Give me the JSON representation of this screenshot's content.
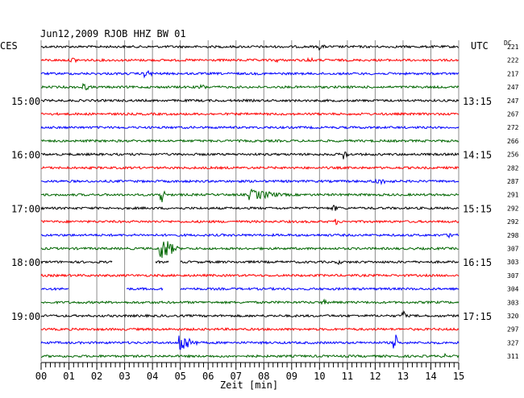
{
  "chart_data": {
    "type": "line",
    "title": "Jun12,2009  RJOB HHZ BW 01",
    "left_label": "CES",
    "right_label": "UTC",
    "dc_header": "DC",
    "xlabel": "Zeit [min]",
    "x_ticks": [
      "00",
      "01",
      "02",
      "03",
      "04",
      "05",
      "06",
      "07",
      "08",
      "09",
      "10",
      "11",
      "12",
      "13",
      "14",
      "15"
    ],
    "xlim": [
      0,
      15
    ],
    "left_time_labels": [
      {
        "trace": 4,
        "text": "15:00"
      },
      {
        "trace": 8,
        "text": "16:00"
      },
      {
        "trace": 12,
        "text": "17:00"
      },
      {
        "trace": 16,
        "text": "18:00"
      },
      {
        "trace": 20,
        "text": "19:00"
      }
    ],
    "right_time_labels": [
      {
        "trace": 4,
        "text": "13:15"
      },
      {
        "trace": 8,
        "text": "14:15"
      },
      {
        "trace": 12,
        "text": "15:15"
      },
      {
        "trace": 16,
        "text": "16:15"
      },
      {
        "trace": 20,
        "text": "17:15"
      }
    ],
    "dc_values": [
      "221",
      "222",
      "217",
      "247",
      "247",
      "267",
      "272",
      "266",
      "256",
      "282",
      "287",
      "291",
      "292",
      "292",
      "298",
      "307",
      "303",
      "307",
      "304",
      "303",
      "320",
      "297",
      "327",
      "311"
    ],
    "colors": [
      "#000000",
      "#ff0000",
      "#0000ff",
      "#006600"
    ],
    "grid": true,
    "events": [
      {
        "trace": 0,
        "t": 10.0,
        "amp": 4,
        "len": 0.3
      },
      {
        "trace": 1,
        "t": 1.1,
        "amp": 4,
        "len": 0.4
      },
      {
        "trace": 1,
        "t": 8.4,
        "amp": 3,
        "len": 0.4
      },
      {
        "trace": 1,
        "t": 9.6,
        "amp": 4,
        "len": 0.3
      },
      {
        "trace": 2,
        "t": 3.7,
        "amp": 5,
        "len": 0.5
      },
      {
        "trace": 3,
        "t": 1.5,
        "amp": 5,
        "len": 0.4
      },
      {
        "trace": 3,
        "t": 5.7,
        "amp": 4,
        "len": 0.4
      },
      {
        "trace": 8,
        "t": 10.9,
        "amp": 7,
        "len": 0.15
      },
      {
        "trace": 10,
        "t": 12.0,
        "amp": 4,
        "len": 1.1
      },
      {
        "trace": 11,
        "t": 4.3,
        "amp": 14,
        "len": 0.15
      },
      {
        "trace": 11,
        "t": 7.5,
        "amp": 7,
        "len": 1.5
      },
      {
        "trace": 12,
        "t": 10.5,
        "amp": 4,
        "len": 0.4
      },
      {
        "trace": 13,
        "t": 10.6,
        "amp": 4,
        "len": 0.2
      },
      {
        "trace": 14,
        "t": 14.7,
        "amp": 5,
        "len": 0.3
      },
      {
        "trace": 15,
        "t": 4.3,
        "amp": 16,
        "len": 0.6
      },
      {
        "trace": 16,
        "t": 10.7,
        "amp": 3,
        "len": 0.3
      },
      {
        "trace": 18,
        "t": 2.1,
        "amp": 4,
        "len": 0.1
      },
      {
        "trace": 19,
        "t": 10.1,
        "amp": 4,
        "len": 0.3
      },
      {
        "trace": 20,
        "t": 13.0,
        "amp": 9,
        "len": 0.1
      },
      {
        "trace": 22,
        "t": 5.0,
        "amp": 13,
        "len": 0.6
      },
      {
        "trace": 22,
        "t": 12.7,
        "amp": 14,
        "len": 0.1
      },
      {
        "trace": 23,
        "t": 14.5,
        "amp": 3,
        "len": 0.3
      }
    ],
    "gaps": [
      {
        "trace": 16,
        "from": 2.55,
        "to": 4.1
      },
      {
        "trace": 16,
        "from": 4.6,
        "to": 5.0
      },
      {
        "trace": 18,
        "from": 1.0,
        "to": 3.05
      },
      {
        "trace": 18,
        "from": 4.4,
        "to": 5.0
      }
    ]
  }
}
